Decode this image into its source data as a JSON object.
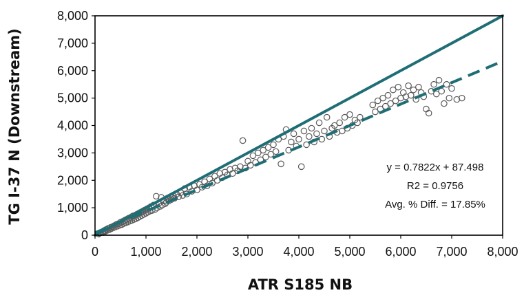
{
  "colors": {
    "line": "#1f6e75",
    "marker": "#5a5a5a",
    "axis": "#000000"
  },
  "chart_data": {
    "type": "scatter",
    "title": "",
    "xlabel": "ATR S185 NB",
    "ylabel": "TG I-37 N (Downstream)",
    "xlim": [
      0,
      8000
    ],
    "ylim": [
      0,
      8000
    ],
    "grid": false,
    "legend": "none",
    "xticks": [
      "0",
      "1,000",
      "2,000",
      "3,000",
      "4,000",
      "5,000",
      "6,000",
      "7,000",
      "8,000"
    ],
    "yticks": [
      "0",
      "1,000",
      "2,000",
      "3,000",
      "4,000",
      "5,000",
      "6,000",
      "7,000",
      "8,000"
    ],
    "reference_line": {
      "style": "solid",
      "slope": 1,
      "intercept": 0
    },
    "trendline": {
      "style": "dashed",
      "slope": 0.7822,
      "intercept": 87.498
    },
    "annotation": {
      "equation": "y = 0.7822x + 87.498",
      "r2": "R2 = 0.9756",
      "avg_diff": "Avg. % Diff. = 17.85%"
    },
    "points": [
      [
        70,
        40
      ],
      [
        90,
        70
      ],
      [
        110,
        90
      ],
      [
        140,
        120
      ],
      [
        160,
        100
      ],
      [
        180,
        170
      ],
      [
        200,
        140
      ],
      [
        220,
        210
      ],
      [
        240,
        180
      ],
      [
        260,
        250
      ],
      [
        280,
        200
      ],
      [
        300,
        280
      ],
      [
        320,
        240
      ],
      [
        340,
        310
      ],
      [
        360,
        270
      ],
      [
        380,
        350
      ],
      [
        400,
        300
      ],
      [
        420,
        390
      ],
      [
        440,
        330
      ],
      [
        460,
        420
      ],
      [
        480,
        360
      ],
      [
        500,
        470
      ],
      [
        520,
        380
      ],
      [
        540,
        500
      ],
      [
        560,
        420
      ],
      [
        580,
        540
      ],
      [
        600,
        450
      ],
      [
        620,
        580
      ],
      [
        640,
        480
      ],
      [
        660,
        620
      ],
      [
        680,
        510
      ],
      [
        700,
        650
      ],
      [
        720,
        540
      ],
      [
        740,
        700
      ],
      [
        760,
        570
      ],
      [
        780,
        720
      ],
      [
        800,
        600
      ],
      [
        820,
        760
      ],
      [
        840,
        640
      ],
      [
        860,
        800
      ],
      [
        880,
        680
      ],
      [
        900,
        840
      ],
      [
        920,
        720
      ],
      [
        940,
        880
      ],
      [
        960,
        760
      ],
      [
        980,
        920
      ],
      [
        1000,
        800
      ],
      [
        1020,
        960
      ],
      [
        1040,
        840
      ],
      [
        1060,
        1000
      ],
      [
        1080,
        880
      ],
      [
        1100,
        1050
      ],
      [
        1120,
        900
      ],
      [
        1150,
        1100
      ],
      [
        1180,
        940
      ],
      [
        1200,
        1420
      ],
      [
        1220,
        1000
      ],
      [
        1250,
        1150
      ],
      [
        1280,
        1050
      ],
      [
        1300,
        1380
      ],
      [
        1320,
        1100
      ],
      [
        1350,
        1250
      ],
      [
        1380,
        1150
      ],
      [
        1400,
        1200
      ],
      [
        1420,
        1350
      ],
      [
        1450,
        1250
      ],
      [
        1480,
        1400
      ],
      [
        1500,
        1300
      ],
      [
        1530,
        1450
      ],
      [
        1560,
        1350
      ],
      [
        1600,
        1500
      ],
      [
        1640,
        1400
      ],
      [
        1680,
        1550
      ],
      [
        1720,
        1450
      ],
      [
        1760,
        1700
      ],
      [
        1800,
        1500
      ],
      [
        1850,
        1750
      ],
      [
        1900,
        1600
      ],
      [
        1950,
        1800
      ],
      [
        2000,
        1650
      ],
      [
        2050,
        1850
      ],
      [
        2100,
        1750
      ],
      [
        2150,
        1950
      ],
      [
        2200,
        1800
      ],
      [
        2250,
        2050
      ],
      [
        2300,
        1900
      ],
      [
        2350,
        2150
      ],
      [
        2400,
        2000
      ],
      [
        2450,
        2250
      ],
      [
        2500,
        2100
      ],
      [
        2550,
        2300
      ],
      [
        2600,
        2200
      ],
      [
        2650,
        2400
      ],
      [
        2700,
        2250
      ],
      [
        2750,
        2450
      ],
      [
        2800,
        2350
      ],
      [
        2850,
        2500
      ],
      [
        2900,
        3450
      ],
      [
        2950,
        2450
      ],
      [
        3000,
        2700
      ],
      [
        3050,
        2550
      ],
      [
        3100,
        2900
      ],
      [
        3150,
        2650
      ],
      [
        3200,
        3000
      ],
      [
        3250,
        2750
      ],
      [
        3300,
        3100
      ],
      [
        3350,
        2850
      ],
      [
        3400,
        3200
      ],
      [
        3450,
        2950
      ],
      [
        3500,
        3300
      ],
      [
        3550,
        3050
      ],
      [
        3600,
        3500
      ],
      [
        3650,
        2600
      ],
      [
        3700,
        3600
      ],
      [
        3750,
        3850
      ],
      [
        3800,
        3100
      ],
      [
        3850,
        3400
      ],
      [
        3900,
        3700
      ],
      [
        3950,
        3250
      ],
      [
        4000,
        3500
      ],
      [
        4050,
        2500
      ],
      [
        4100,
        3800
      ],
      [
        4150,
        3300
      ],
      [
        4200,
        3600
      ],
      [
        4250,
        3900
      ],
      [
        4300,
        3400
      ],
      [
        4350,
        3700
      ],
      [
        4400,
        4100
      ],
      [
        4450,
        3500
      ],
      [
        4500,
        3800
      ],
      [
        4550,
        4300
      ],
      [
        4600,
        3600
      ],
      [
        4650,
        3900
      ],
      [
        4700,
        4000
      ],
      [
        4750,
        3750
      ],
      [
        4800,
        4100
      ],
      [
        4850,
        3800
      ],
      [
        4900,
        4300
      ],
      [
        4950,
        3900
      ],
      [
        5000,
        4400
      ],
      [
        5050,
        4000
      ],
      [
        5100,
        4200
      ],
      [
        5150,
        4100
      ],
      [
        5200,
        4300
      ],
      [
        5450,
        4750
      ],
      [
        5500,
        4500
      ],
      [
        5550,
        4900
      ],
      [
        5600,
        4600
      ],
      [
        5650,
        5000
      ],
      [
        5700,
        4700
      ],
      [
        5750,
        5100
      ],
      [
        5800,
        4800
      ],
      [
        5850,
        5300
      ],
      [
        5900,
        4900
      ],
      [
        5950,
        5400
      ],
      [
        6000,
        5000
      ],
      [
        6050,
        5200
      ],
      [
        6100,
        5050
      ],
      [
        6150,
        5450
      ],
      [
        6200,
        5100
      ],
      [
        6250,
        5300
      ],
      [
        6300,
        4950
      ],
      [
        6350,
        5400
      ],
      [
        6400,
        5200
      ],
      [
        6450,
        5050
      ],
      [
        6500,
        4600
      ],
      [
        6550,
        4450
      ],
      [
        6600,
        5250
      ],
      [
        6650,
        5500
      ],
      [
        6700,
        5150
      ],
      [
        6750,
        5650
      ],
      [
        6800,
        5250
      ],
      [
        6850,
        4800
      ],
      [
        6900,
        5500
      ],
      [
        6950,
        5000
      ],
      [
        7000,
        5350
      ],
      [
        7100,
        4950
      ],
      [
        7200,
        5000
      ]
    ]
  }
}
